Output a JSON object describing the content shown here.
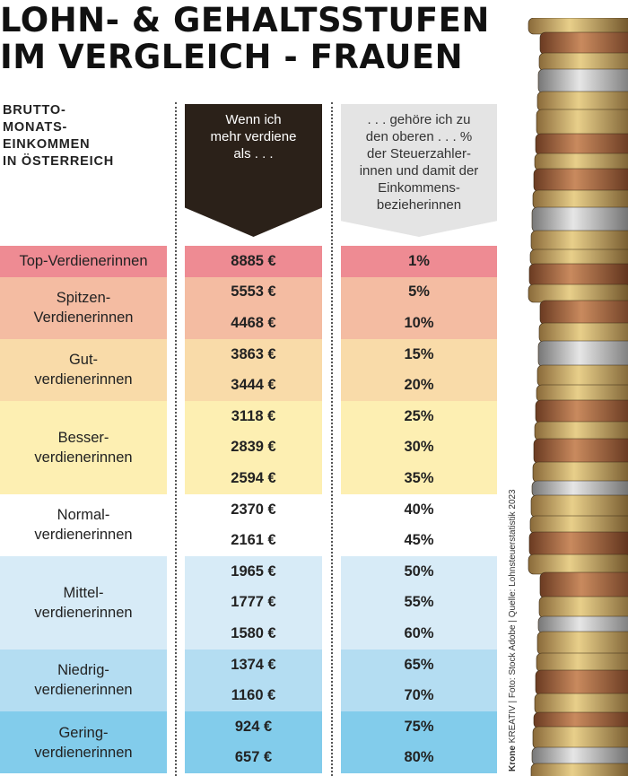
{
  "title": {
    "line1": "LOHN- & GEHALTSSTUFEN",
    "line2": "IM VERGLEICH - FRAUEN"
  },
  "subheading": [
    "BRUTTO-",
    "MONATS-",
    "EINKOMMEN",
    "IN ÖSTERREICH"
  ],
  "header_income": [
    "Wenn ich",
    "mehr verdiene",
    "als . . ."
  ],
  "header_percent": [
    ". . . gehöre ich zu",
    "den oberen . . . %",
    "der Steuerzahler-",
    "innen und damit der",
    "Einkommens-",
    "bezieherinnen"
  ],
  "credit": {
    "brand": "Krone",
    "rest": " KREATIV  |  Foto: Stock Adobe  |  Quelle: Lohnsteuerstatistik 2023"
  },
  "chart_data": {
    "type": "table",
    "groups": [
      {
        "label": [
          "Top-Verdienerinnen"
        ],
        "color": "#ee8b93",
        "rows": [
          [
            "8885 €",
            "1%"
          ]
        ]
      },
      {
        "label": [
          "Spitzen-",
          "Verdienerinnen"
        ],
        "color": "#f4bca2",
        "rows": [
          [
            "5553 €",
            "5%"
          ],
          [
            "4468 €",
            "10%"
          ]
        ]
      },
      {
        "label": [
          "Gut-",
          "verdienerinnen"
        ],
        "color": "#f9dba9",
        "rows": [
          [
            "3863 €",
            "15%"
          ],
          [
            "3444 €",
            "20%"
          ]
        ]
      },
      {
        "label": [
          "Besser-",
          "verdienerinnen"
        ],
        "color": "#fdefb2",
        "rows": [
          [
            "3118 €",
            "25%"
          ],
          [
            "2839 €",
            "30%"
          ],
          [
            "2594 €",
            "35%"
          ]
        ]
      },
      {
        "label": [
          "Normal-",
          "verdienerinnen"
        ],
        "color": "#ffffff",
        "rows": [
          [
            "2370 €",
            "40%"
          ],
          [
            "2161 €",
            "45%"
          ]
        ]
      },
      {
        "label": [
          "Mittel-",
          "verdienerinnen"
        ],
        "color": "#d7ebf7",
        "rows": [
          [
            "1965 €",
            "50%"
          ],
          [
            "1777 €",
            "55%"
          ],
          [
            "1580 €",
            "60%"
          ]
        ]
      },
      {
        "label": [
          "Niedrig-",
          "verdienerinnen"
        ],
        "color": "#b4ddf2",
        "rows": [
          [
            "1374 €",
            "65%"
          ],
          [
            "1160 €",
            "70%"
          ]
        ]
      },
      {
        "label": [
          "Gering-",
          "verdienerinnen"
        ],
        "color": "#82cceb",
        "rows": [
          [
            "924 €",
            "75%"
          ],
          [
            "657 €",
            "80%"
          ]
        ]
      }
    ]
  }
}
